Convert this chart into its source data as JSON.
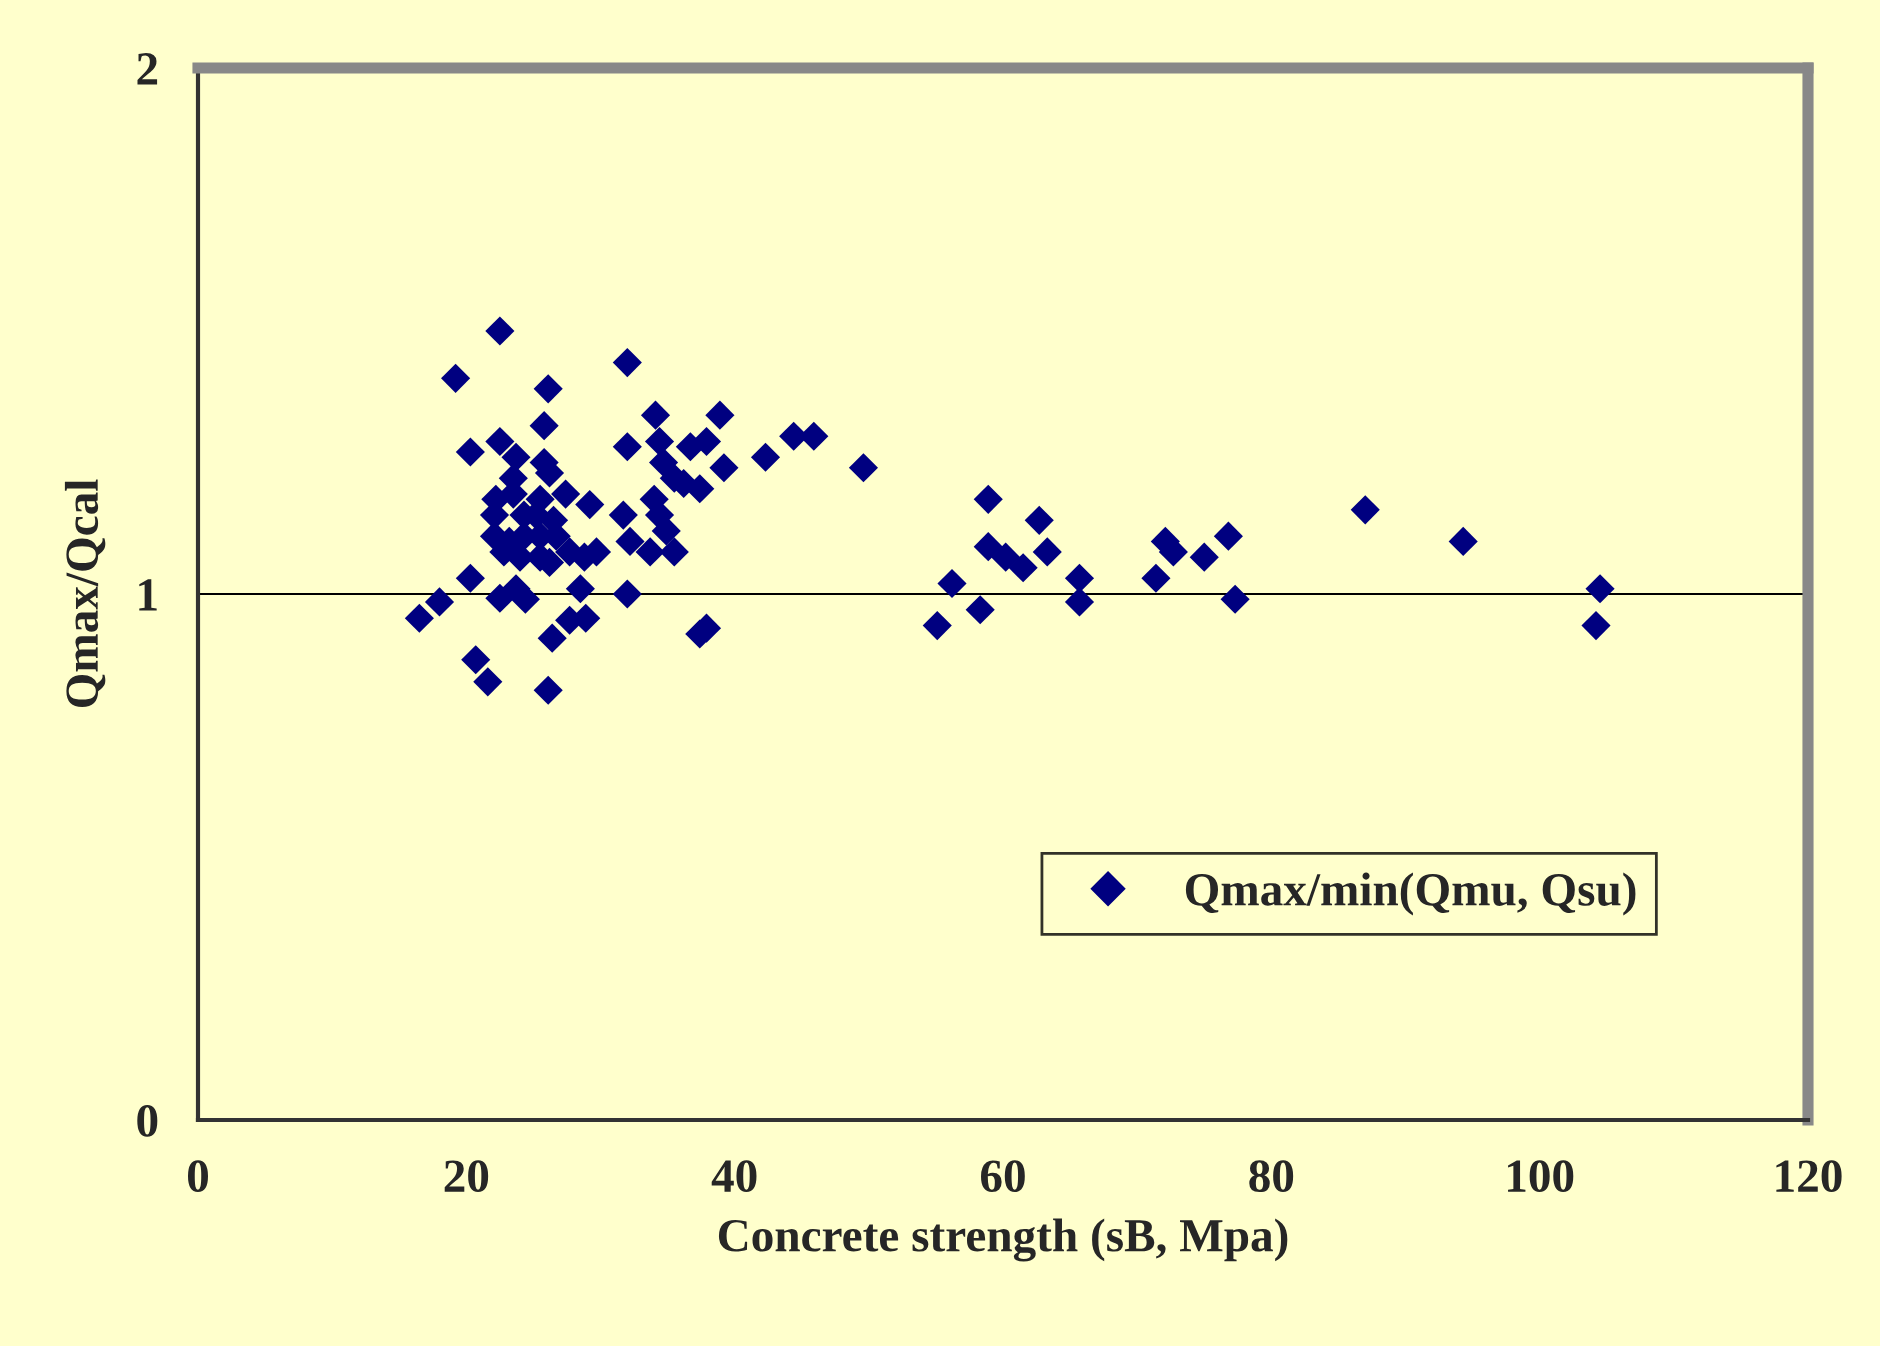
{
  "chart_data": {
    "type": "scatter",
    "xlabel": "Concrete strength (sB, Mpa)",
    "ylabel": "Qmax/Qcal",
    "xlim": [
      0,
      120
    ],
    "ylim": [
      0,
      2
    ],
    "xticks": [
      0,
      20,
      40,
      60,
      80,
      100,
      120
    ],
    "yticks": [
      0,
      1,
      2
    ],
    "grid": false,
    "legend": "bottom right",
    "marker": "diamond",
    "ref_lines": [
      {
        "axis": "y",
        "value": 1,
        "color": "#000000"
      }
    ],
    "series": [
      {
        "name": "Qmax/min(Qmu, Qsu)",
        "color": "#000080",
        "x": [
          22.5,
          19.2,
          32.0,
          26.1,
          25.8,
          20.3,
          22.5,
          23.7,
          25.8,
          26.2,
          23.5,
          34.1,
          38.9,
          32.0,
          34.4,
          36.7,
          37.9,
          39.2,
          42.3,
          44.4,
          45.9,
          34.7,
          35.5,
          36.2,
          37.4,
          34.0,
          34.4,
          34.9,
          35.5,
          33.7,
          31.7,
          32.2,
          27.4,
          29.2,
          25.5,
          25.2,
          22.2,
          22.1,
          23.5,
          24.3,
          26.5,
          22.1,
          23.2,
          24.3,
          25.5,
          26.7,
          22.8,
          24.0,
          25.5,
          26.2,
          27.7,
          28.8,
          29.7,
          20.3,
          18.0,
          16.5,
          22.5,
          23.7,
          24.4,
          28.5,
          32.0,
          27.7,
          28.9,
          26.4,
          37.4,
          37.9,
          20.7,
          21.6,
          26.1,
          49.6,
          58.9,
          58.9,
          60.2,
          61.5,
          62.7,
          63.3,
          56.2,
          55.1,
          58.3,
          65.7,
          65.7,
          71.4,
          72.1,
          72.7,
          75.0,
          76.8,
          77.3,
          87.0,
          94.3,
          104.5,
          104.2
        ],
        "values": [
          1.5,
          1.41,
          1.44,
          1.39,
          1.32,
          1.27,
          1.29,
          1.26,
          1.25,
          1.23,
          1.22,
          1.34,
          1.34,
          1.28,
          1.29,
          1.28,
          1.29,
          1.24,
          1.26,
          1.3,
          1.3,
          1.25,
          1.22,
          1.21,
          1.2,
          1.18,
          1.15,
          1.12,
          1.08,
          1.08,
          1.15,
          1.1,
          1.19,
          1.17,
          1.18,
          1.15,
          1.18,
          1.15,
          1.19,
          1.15,
          1.14,
          1.11,
          1.1,
          1.11,
          1.11,
          1.11,
          1.08,
          1.07,
          1.07,
          1.06,
          1.08,
          1.07,
          1.08,
          1.03,
          0.985,
          0.954,
          0.992,
          1.01,
          0.99,
          1.01,
          1.0,
          0.95,
          0.954,
          0.916,
          0.924,
          0.935,
          0.875,
          0.833,
          0.817,
          1.24,
          1.18,
          1.09,
          1.07,
          1.05,
          1.14,
          1.08,
          1.02,
          0.94,
          0.97,
          1.03,
          0.985,
          1.03,
          1.1,
          1.08,
          1.07,
          1.11,
          0.99,
          1.16,
          1.1,
          1.01,
          0.94
        ]
      }
    ]
  }
}
